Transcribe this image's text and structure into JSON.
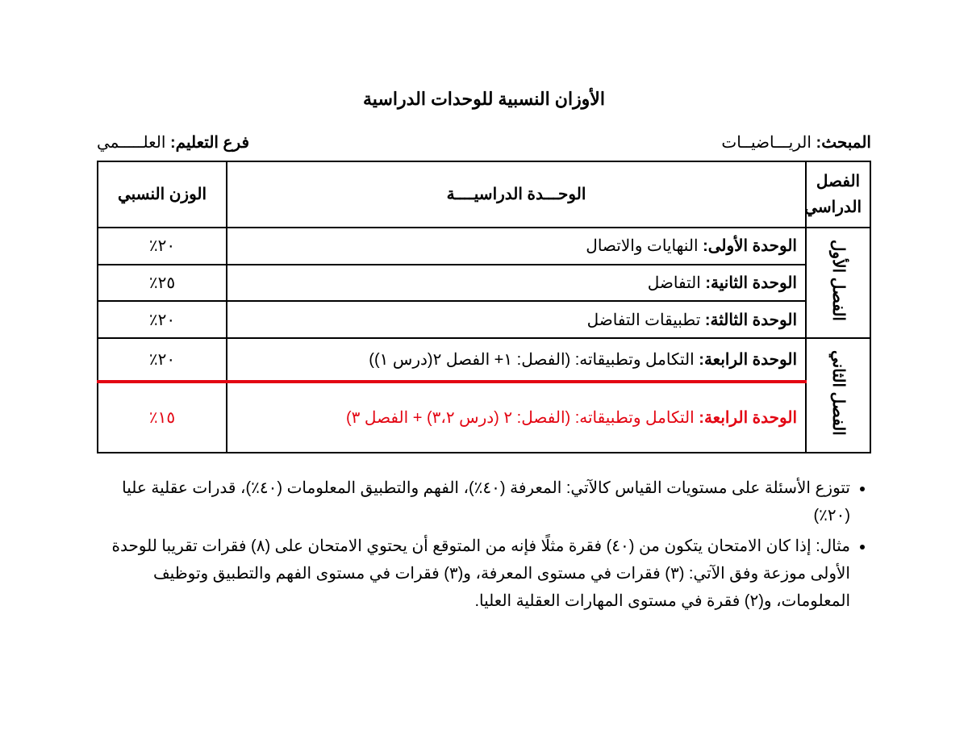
{
  "title": "الأوزان النسبية للوحدات الدراسية",
  "header": {
    "subject_label": "المبحث:",
    "subject_value": "الريـــاضيــات",
    "branch_label": "فرع التعليم:",
    "branch_value": "العلـــــمي"
  },
  "table": {
    "columns": {
      "semester": "الفصل الدراسي",
      "unit": "الوحـــدة الدراسيــــة",
      "weight": "الوزن النسبي"
    },
    "semesters": {
      "s1": "الفصل الأول",
      "s2": "الفصل الثاني"
    },
    "rows": [
      {
        "unit_name": "الوحدة الأولى:",
        "unit_desc": "النهايات والاتصال",
        "weight": "٢٠٪"
      },
      {
        "unit_name": "الوحدة الثانية:",
        "unit_desc": "التفاضل",
        "weight": "٢٥٪"
      },
      {
        "unit_name": "الوحدة الثالثة:",
        "unit_desc": "تطبيقات التفاضل",
        "weight": "٢٠٪"
      },
      {
        "unit_name": "الوحدة الرابعة:",
        "unit_desc": "التكامل وتطبيقاته: (الفصل: ١+ الفصل ٢(درس ١))",
        "weight": "٢٠٪"
      },
      {
        "unit_name": "الوحدة الرابعة:",
        "unit_desc": "التكامل وتطبيقاته: (الفصل: ٢ (درس ٣،٢) + الفصل ٣)",
        "weight": "١٥٪"
      }
    ]
  },
  "notes": {
    "n1": "تتوزع الأسئلة على مستويات القياس كالآتي: المعرفة (٤٠٪)، الفهم والتطبيق المعلومات (٤٠٪)، قدرات عقلية عليا (٢٠٪)",
    "n2": "مثال: إذا كان الامتحان يتكون من (٤٠) فقرة مثلًا فإنه من المتوقع أن يحتوي الامتحان على (٨) فقرات تقريبا للوحدة الأولى موزعة وفق الآتي: (٣) فقرات في مستوى المعرفة، و(٣) فقرات في مستوى الفهم والتطبيق وتوظيف المعلومات، و(٢) فقرة في مستوى المهارات العقلية العليا."
  },
  "style": {
    "text_color": "#000000",
    "accent_color": "#e30613",
    "background_color": "#ffffff",
    "border_color": "#000000",
    "title_fontsize": 22,
    "body_fontsize": 20
  }
}
